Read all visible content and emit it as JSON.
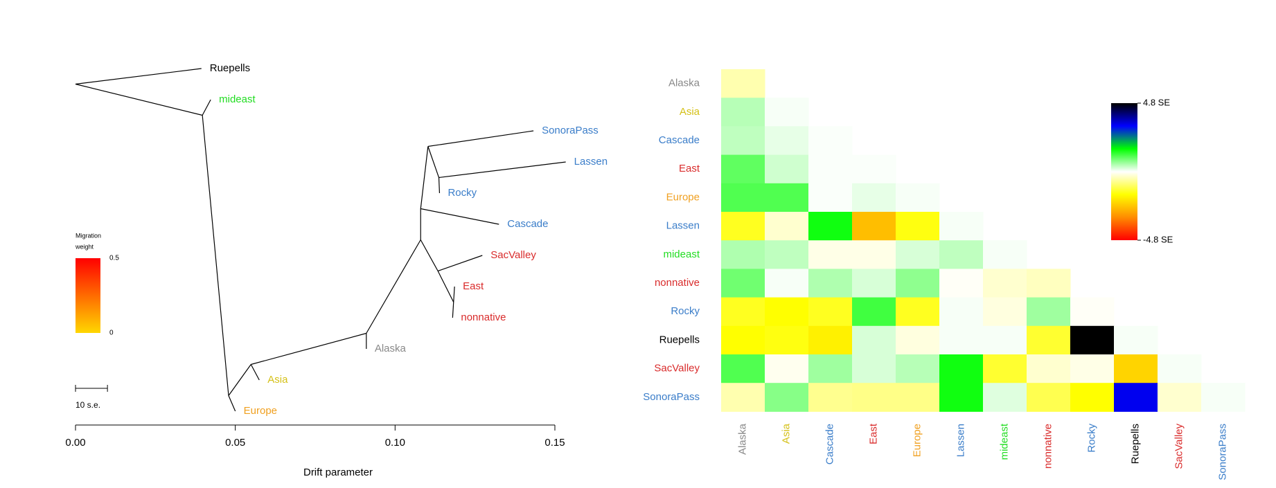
{
  "chart_data": [
    {
      "type": "tree",
      "xlabel": "Drift parameter",
      "xlim": [
        0,
        0.15
      ],
      "xticks": [
        {
          "value": 0,
          "label": "0.00"
        },
        0.05,
        {
          "value": 0.1,
          "label": "0.10"
        },
        0.15
      ],
      "legend": {
        "title": [
          "Migration",
          "weight"
        ],
        "lim": [
          0,
          0.5
        ],
        "ticks": [
          0.5,
          0
        ],
        "colors": [
          "#ffd700",
          "#ff0000"
        ]
      },
      "scale_bar": {
        "label": "10 s.e.",
        "length": 0.01
      },
      "tree": {
        "x": 0,
        "children": [
          {
            "label": "Ruepells",
            "color": "#000000",
            "x": 0.0394
          },
          {
            "x": 0.0397,
            "children": [
              {
                "label": "mideast",
                "color": "#22dd22",
                "x": 0.0423
              },
              {
                "x": 0.0479,
                "children": [
                  {
                    "x": 0.0549,
                    "children": [
                      {
                        "x": 0.091,
                        "children": [
                          {
                            "x": 0.108,
                            "children": [
                              {
                                "x": 0.108,
                                "children": [
                                  {
                                    "x": 0.1103,
                                    "children": [
                                      {
                                        "label": "SonoraPass",
                                        "color": "#3a7dc9",
                                        "x": 0.1433
                                      },
                                      {
                                        "x": 0.1137,
                                        "children": [
                                          {
                                            "label": "Lassen",
                                            "color": "#3a7dc9",
                                            "x": 0.1534
                                          },
                                          {
                                            "label": "Rocky",
                                            "color": "#3a7dc9",
                                            "x": 0.1139
                                          }
                                        ]
                                      }
                                    ]
                                  },
                                  {
                                    "label": "Cascade",
                                    "color": "#3a7dc9",
                                    "x": 0.1325
                                  }
                                ]
                              },
                              {
                                "x": 0.1134,
                                "children": [
                                  {
                                    "label": "SacValley",
                                    "color": "#d92b2b",
                                    "x": 0.1273
                                  },
                                  {
                                    "x": 0.1183,
                                    "children": [
                                      {
                                        "label": "East",
                                        "color": "#d92b2b",
                                        "x": 0.1186
                                      },
                                      {
                                        "label": "nonnative",
                                        "color": "#d92b2b",
                                        "x": 0.118
                                      }
                                    ]
                                  }
                                ]
                              }
                            ]
                          },
                          {
                            "label": "Alaska",
                            "color": "#888888",
                            "x": 0.091
                          }
                        ]
                      },
                      {
                        "label": "Asia",
                        "color": "#d4c017",
                        "x": 0.0575
                      }
                    ]
                  },
                  {
                    "label": "Europe",
                    "color": "#f0a020",
                    "x": 0.05
                  }
                ]
              }
            ]
          }
        ]
      }
    },
    {
      "type": "heatmap",
      "categories": [
        "Alaska",
        "Asia",
        "Cascade",
        "East",
        "Europe",
        "Lassen",
        "mideast",
        "nonnative",
        "Rocky",
        "Ruepells",
        "SacValley",
        "SonoraPass"
      ],
      "label_colors": [
        "#888888",
        "#d4c017",
        "#3a7dc9",
        "#d92b2b",
        "#f0a020",
        "#3a7dc9",
        "#22dd22",
        "#d92b2b",
        "#3a7dc9",
        "#000000",
        "#d92b2b",
        "#3a7dc9"
      ],
      "values": [
        [
          -0.5
        ],
        [
          0.45,
          0.05
        ],
        [
          0.4,
          0.15,
          0.03
        ],
        [
          1.0,
          0.3,
          0.03,
          0.03
        ],
        [
          1.1,
          1.1,
          0.03,
          0.15,
          0.05
        ],
        [
          -1.4,
          -0.3,
          1.5,
          -2.5,
          -1.5,
          0.05
        ],
        [
          0.5,
          0.4,
          -0.15,
          -0.15,
          0.25,
          0.4,
          0.05
        ],
        [
          0.9,
          0.05,
          0.5,
          0.25,
          0.7,
          -0.05,
          -0.3,
          -0.4
        ],
        [
          -1.4,
          -1.6,
          -1.4,
          1.2,
          -1.4,
          0.05,
          -0.2,
          0.6,
          -0.05
        ],
        [
          -1.6,
          -1.5,
          -1.8,
          0.25,
          -0.2,
          0.05,
          0.05,
          -1.3,
          4.8,
          0.05
        ],
        [
          1.1,
          -0.1,
          0.6,
          0.25,
          0.45,
          1.5,
          -1.3,
          -0.3,
          -0.15,
          -2.2,
          0.05
        ],
        [
          -0.5,
          0.75,
          -0.7,
          -0.75,
          -0.75,
          1.5,
          0.2,
          -1.1,
          -1.6,
          3.3,
          -0.3,
          0.05
        ]
      ],
      "zlim": [
        -4.8,
        4.8
      ],
      "zticks": [
        {
          "value": 4.8,
          "label": "4.8 SE"
        },
        {
          "value": -4.8,
          "label": "-4.8 SE"
        }
      ],
      "colors": [
        "#ff0000",
        "#ff8c00",
        "#ffff00",
        "#ffffff",
        "#00ff00",
        "#0000ff",
        "#000000"
      ]
    }
  ]
}
